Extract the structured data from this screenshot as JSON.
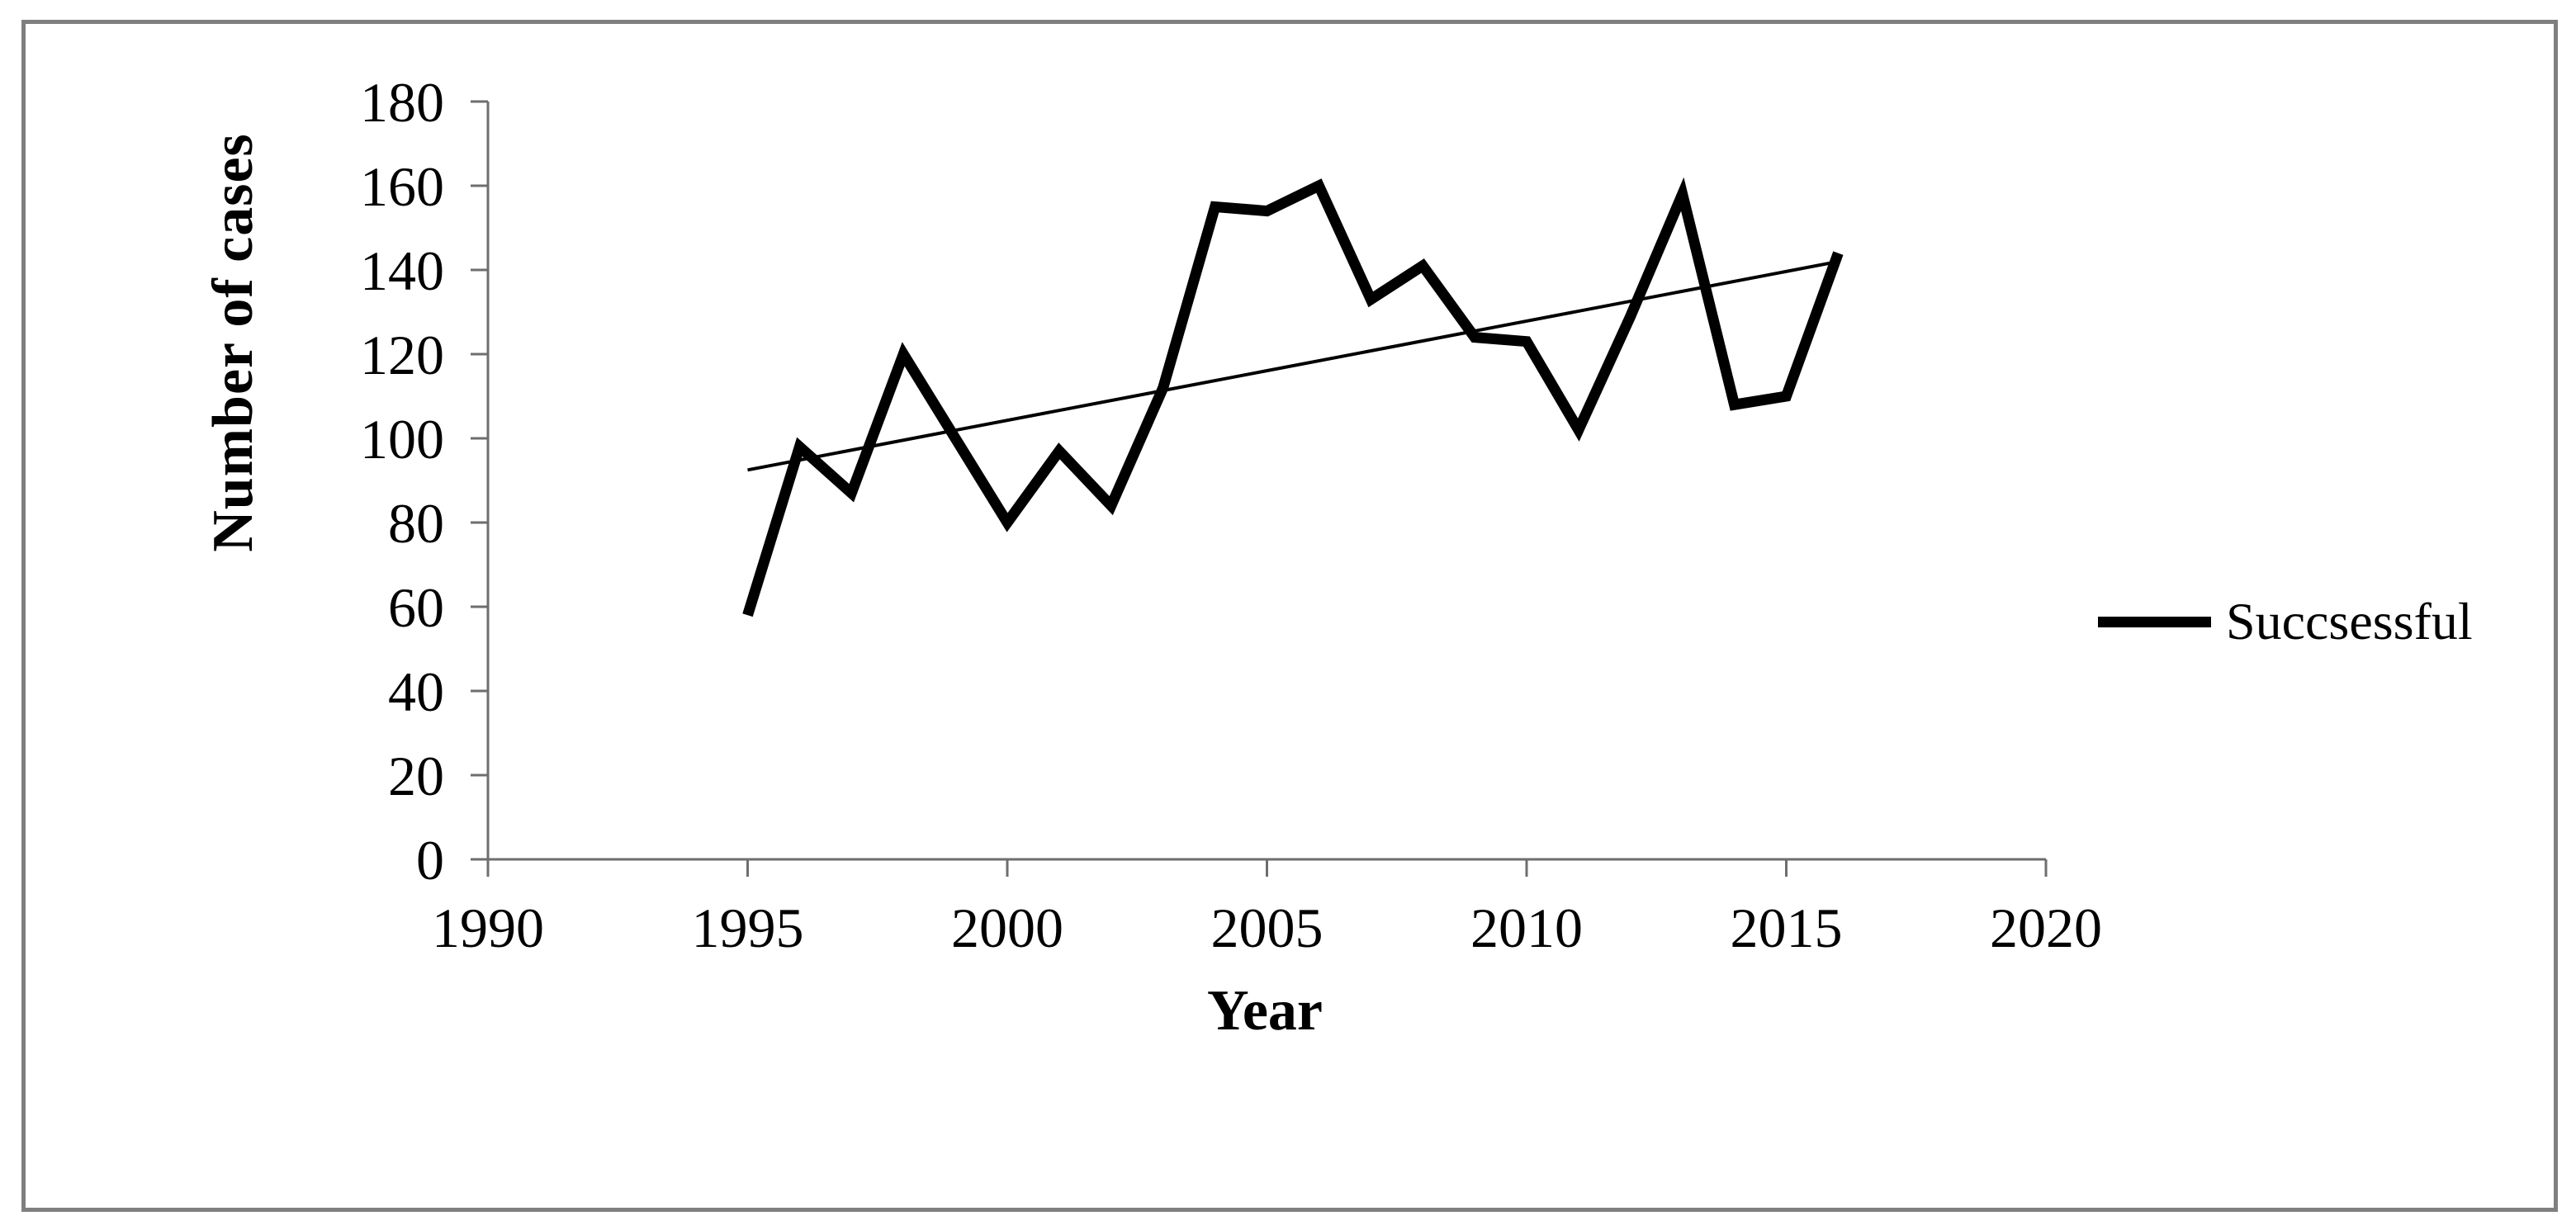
{
  "chart_data": {
    "type": "line",
    "title": "",
    "xlabel": "Year",
    "ylabel": "Number of cases",
    "xlim": [
      1990,
      2020
    ],
    "ylim": [
      0,
      180
    ],
    "x_ticks": [
      1990,
      1995,
      2000,
      2005,
      2010,
      2015,
      2020
    ],
    "y_ticks": [
      0,
      20,
      40,
      60,
      80,
      100,
      120,
      140,
      160,
      180
    ],
    "grid": "off",
    "legend": {
      "label": "Succsessful",
      "position": "right-middle"
    },
    "series": [
      {
        "name": "Succsessful",
        "style": "thick-solid",
        "color": "#000000",
        "x": [
          1995,
          1996,
          1997,
          1998,
          1999,
          2000,
          2001,
          2002,
          2003,
          2004,
          2005,
          2006,
          2007,
          2008,
          2009,
          2010,
          2011,
          2012,
          2013,
          2014,
          2015,
          2016
        ],
        "values": [
          58,
          98,
          87,
          120,
          100,
          80,
          97,
          84,
          112,
          155,
          154,
          160,
          133,
          141,
          124,
          123,
          102,
          129,
          158,
          108,
          110,
          144
        ]
      },
      {
        "name": "linear-trendline",
        "style": "thin-solid",
        "color": "#000000",
        "x": [
          1995,
          2016
        ],
        "values": [
          92.5,
          142
        ]
      }
    ],
    "colors": {
      "axis": "#6e6e6e",
      "frame": "#7f7f7f",
      "text": "#000000",
      "line": "#000000"
    }
  }
}
